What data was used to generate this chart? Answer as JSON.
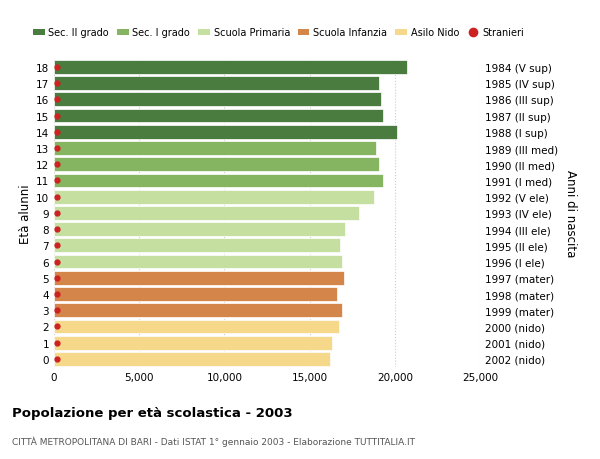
{
  "ages": [
    18,
    17,
    16,
    15,
    14,
    13,
    12,
    11,
    10,
    9,
    8,
    7,
    6,
    5,
    4,
    3,
    2,
    1,
    0
  ],
  "right_labels": [
    "1984 (V sup)",
    "1985 (IV sup)",
    "1986 (III sup)",
    "1987 (II sup)",
    "1988 (I sup)",
    "1989 (III med)",
    "1990 (II med)",
    "1991 (I med)",
    "1992 (V ele)",
    "1993 (IV ele)",
    "1994 (III ele)",
    "1995 (II ele)",
    "1996 (I ele)",
    "1997 (mater)",
    "1998 (mater)",
    "1999 (mater)",
    "2000 (nido)",
    "2001 (nido)",
    "2002 (nido)"
  ],
  "bar_values": [
    20700,
    19100,
    19200,
    19300,
    20100,
    18900,
    19100,
    19300,
    18800,
    17900,
    17100,
    16800,
    16900,
    17000,
    16600,
    16900,
    16700,
    16300,
    16200
  ],
  "stranieri_dot_x": [
    200,
    200,
    200,
    200,
    200,
    200,
    200,
    200,
    200,
    200,
    200,
    200,
    200,
    200,
    200,
    200,
    200,
    200,
    200
  ],
  "bar_colors": [
    "#4a7c40",
    "#4a7c40",
    "#4a7c40",
    "#4a7c40",
    "#4a7c40",
    "#85b560",
    "#85b560",
    "#85b560",
    "#c5dfa0",
    "#c5dfa0",
    "#c5dfa0",
    "#c5dfa0",
    "#c5dfa0",
    "#d4854a",
    "#d4854a",
    "#d4854a",
    "#f5d88a",
    "#f5d88a",
    "#f5d88a"
  ],
  "legend_labels": [
    "Sec. II grado",
    "Sec. I grado",
    "Scuola Primaria",
    "Scuola Infanzia",
    "Asilo Nido",
    "Stranieri"
  ],
  "legend_colors": [
    "#4a7c40",
    "#85b560",
    "#c5dfa0",
    "#d4854a",
    "#f5d88a",
    "#cc2222"
  ],
  "stranieri_color": "#cc2222",
  "title": "Popolazione per età scolastica - 2003",
  "subtitle": "CITTÀ METROPOLITANA DI BARI - Dati ISTAT 1° gennaio 2003 - Elaborazione TUTTITALIA.IT",
  "ylabel_left": "Età alunni",
  "ylabel_right": "Anni di nascita",
  "xlim": [
    0,
    25000
  ],
  "xticks": [
    0,
    5000,
    10000,
    15000,
    20000,
    25000
  ],
  "xtick_labels": [
    "0",
    "5,000",
    "10,000",
    "15,000",
    "20,000",
    "25,000"
  ],
  "bar_height": 0.85,
  "bg_color": "#ffffff",
  "grid_color": "#cccccc",
  "bar_edge_color": "#ffffff",
  "bar_linewidth": 0.5
}
